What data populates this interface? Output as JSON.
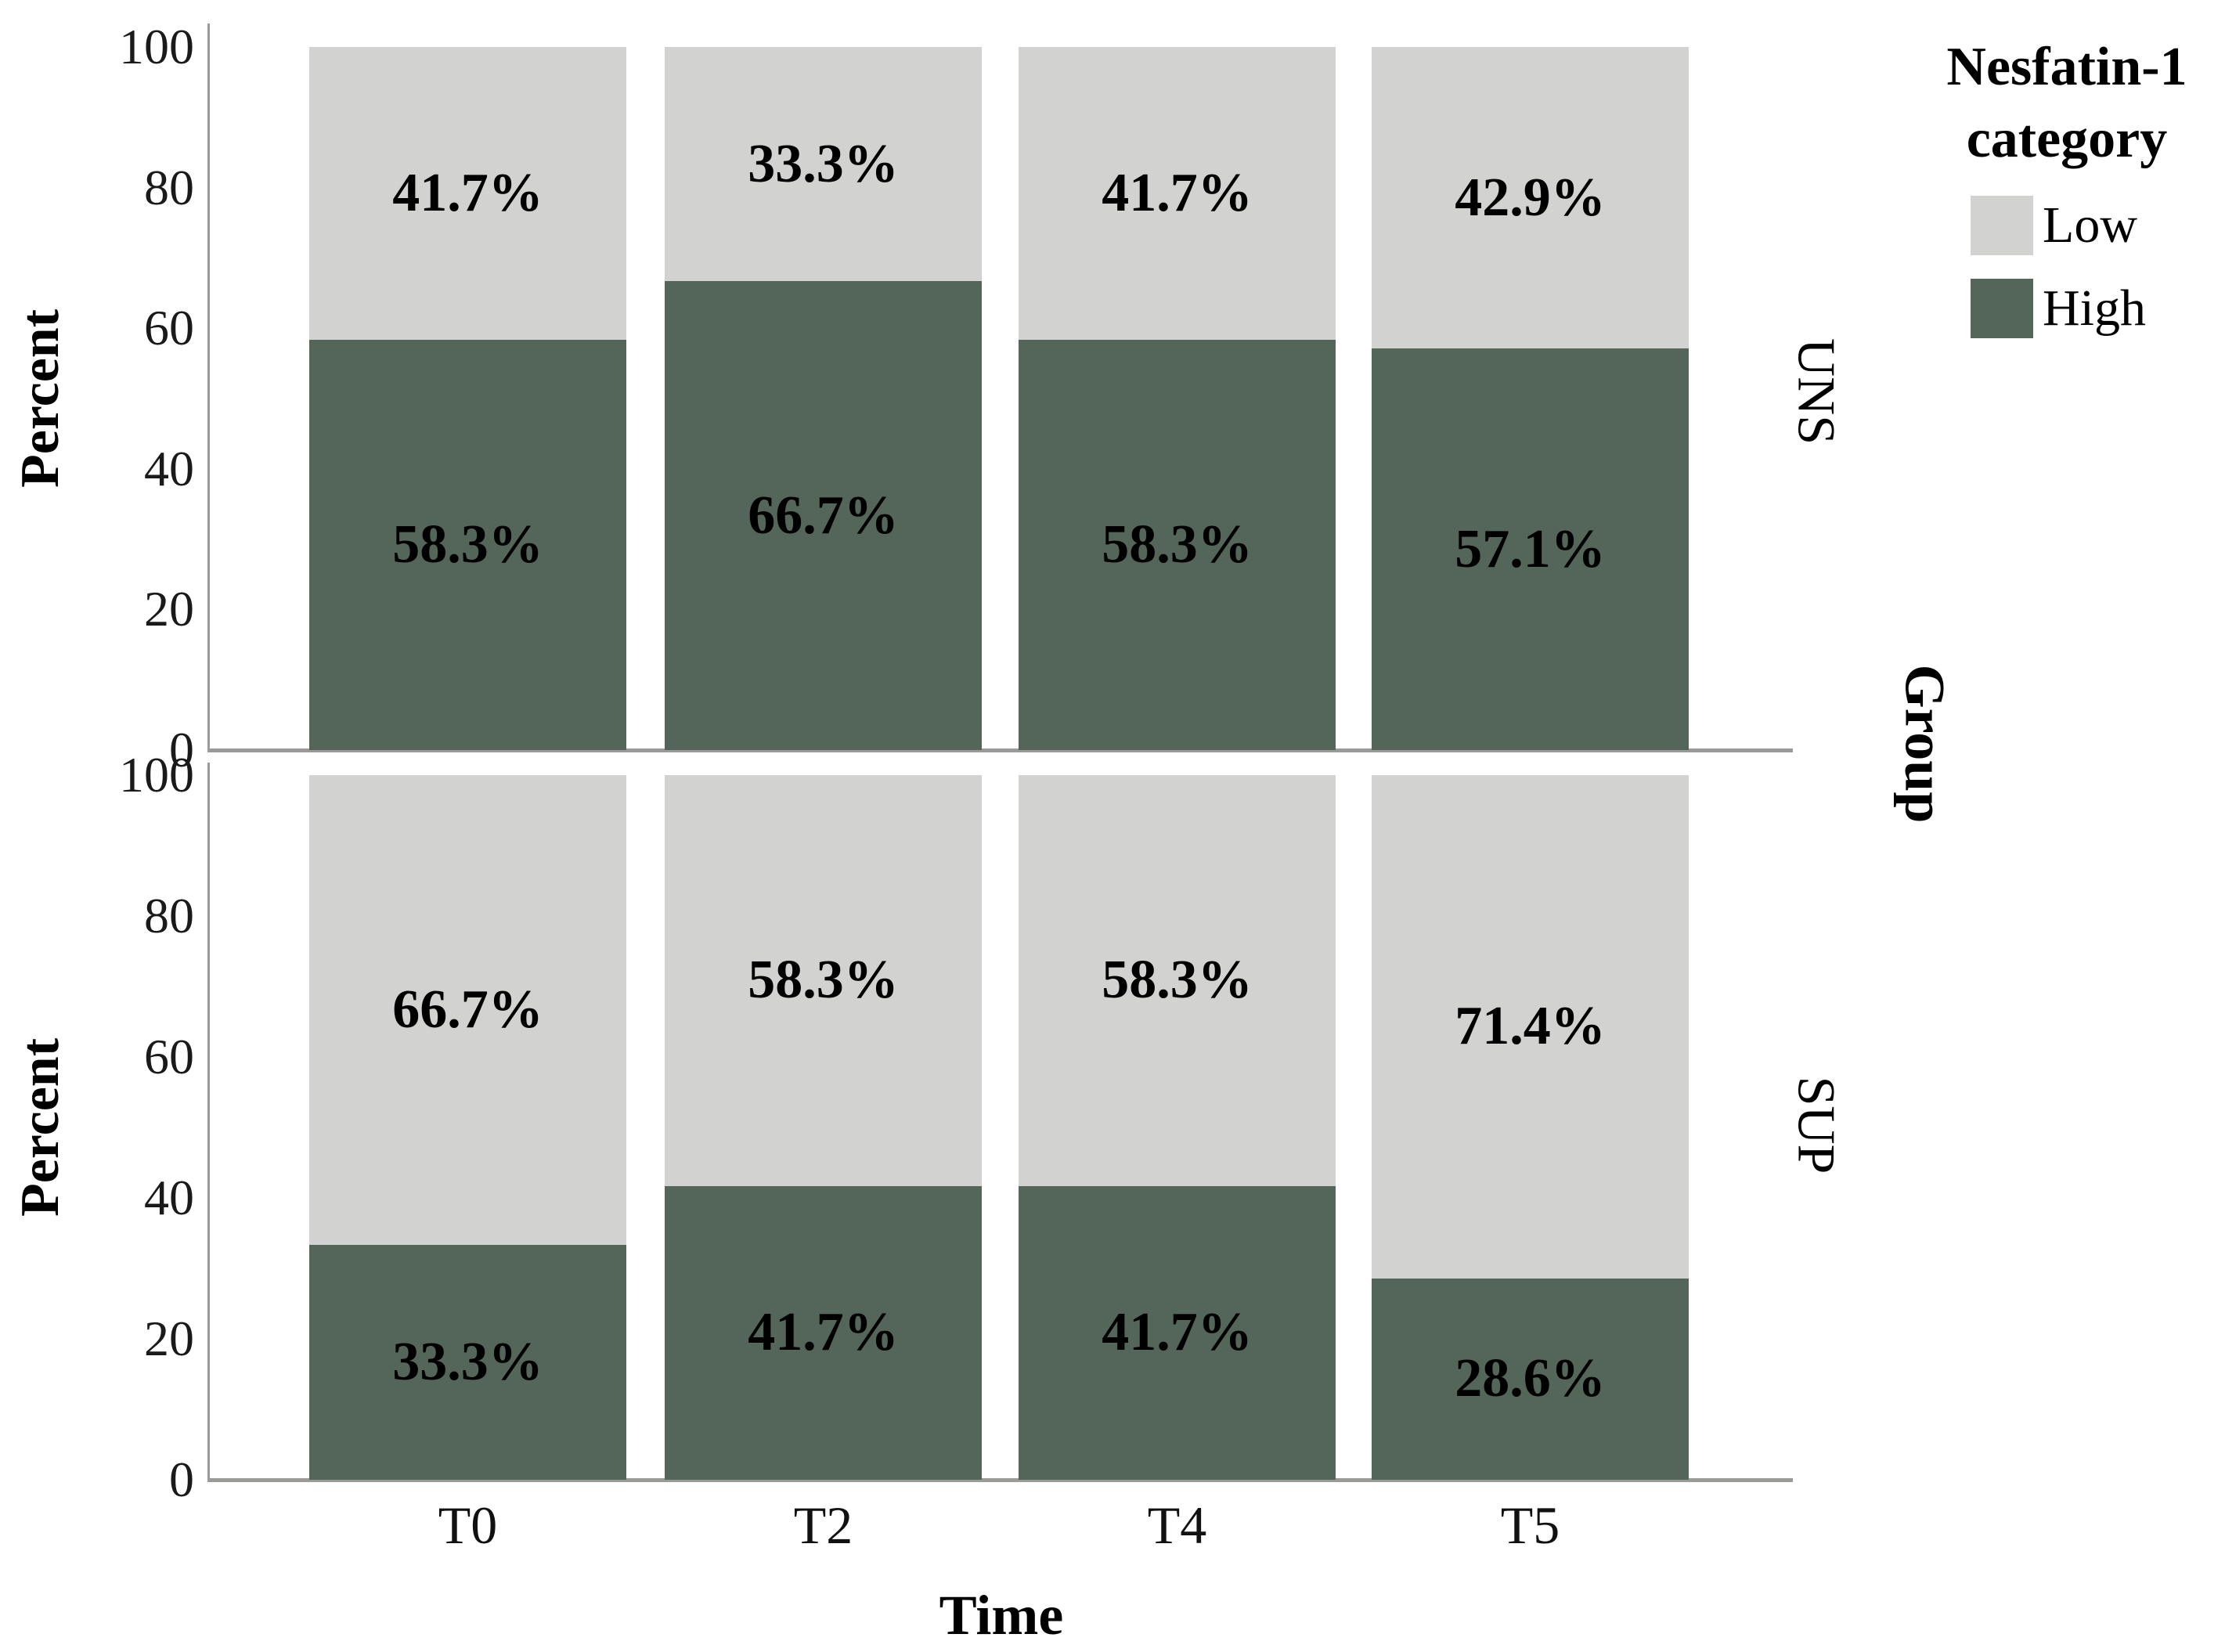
{
  "chart_data": {
    "type": "bar",
    "stacked": true,
    "title": "",
    "xlabel": "Time",
    "ylabel": "Percent",
    "panel_axis_label": "Group",
    "legend_title": "Nesfatin-1 category",
    "legend_title_lines": [
      "Nesfatin-1",
      "category"
    ],
    "legend_position": "top-right",
    "legend": [
      "Low",
      "High"
    ],
    "categories": [
      "T0",
      "T2",
      "T4",
      "T5"
    ],
    "ylim": [
      0,
      100
    ],
    "yticks": [
      0,
      20,
      40,
      60,
      80,
      100
    ],
    "grid": false,
    "colors": {
      "Low": "#d2d2d0",
      "High": "#546659"
    },
    "axis_color": "#9a9a98",
    "panels": [
      {
        "group": "UNS",
        "series": [
          {
            "name": "Low",
            "values": [
              41.7,
              33.3,
              41.7,
              42.9
            ],
            "labels": [
              "41.7%",
              "33.3%",
              "41.7%",
              "42.9%"
            ]
          },
          {
            "name": "High",
            "values": [
              58.3,
              66.7,
              58.3,
              57.1
            ],
            "labels": [
              "58.3%",
              "66.7%",
              "58.3%",
              "57.1%"
            ]
          }
        ]
      },
      {
        "group": "SUP",
        "series": [
          {
            "name": "Low",
            "values": [
              66.7,
              58.3,
              58.3,
              71.4
            ],
            "labels": [
              "66.7%",
              "58.3%",
              "58.3%",
              "71.4%"
            ]
          },
          {
            "name": "High",
            "values": [
              33.3,
              41.7,
              41.7,
              28.6
            ],
            "labels": [
              "33.3%",
              "41.7%",
              "41.7%",
              "28.6%"
            ]
          }
        ]
      }
    ]
  }
}
